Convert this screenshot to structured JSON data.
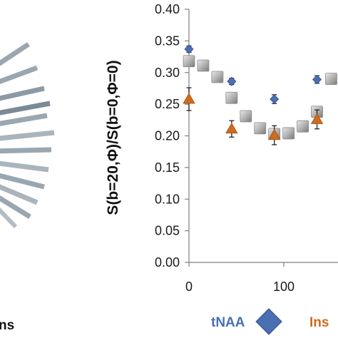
{
  "chart_data": {
    "type": "scatter",
    "ylabel": "S(b=20,Φ)/S(b=0,Φ=0)",
    "xlabel": "",
    "ylim": [
      0.0,
      0.4
    ],
    "yticks": [
      "0.00",
      "0.05",
      "0.10",
      "0.15",
      "0.20",
      "0.25",
      "0.30",
      "0.35",
      "0.40"
    ],
    "xticks": [
      "0",
      "100"
    ],
    "x_tick_values": [
      0,
      100
    ],
    "grid": false,
    "series": [
      {
        "name": "tNAA",
        "marker": "diamond",
        "color": "#4a6fb3",
        "x": [
          0,
          45,
          90,
          135
        ],
        "y": [
          0.337,
          0.286,
          0.258,
          0.289
        ],
        "err": [
          0.005,
          0.005,
          0.007,
          0.006
        ]
      },
      {
        "name": "Ins",
        "marker": "triangle",
        "color": "#d06a1e",
        "x": [
          0,
          45,
          90,
          135
        ],
        "y": [
          0.258,
          0.211,
          0.201,
          0.226
        ],
        "err": [
          0.018,
          0.013,
          0.015,
          0.015
        ]
      },
      {
        "name": "",
        "marker": "square",
        "color": "#a6a6a6",
        "x": [
          0,
          15,
          30,
          45,
          60,
          75,
          90,
          105,
          120,
          135,
          150
        ],
        "y": [
          0.318,
          0.311,
          0.293,
          0.26,
          0.231,
          0.212,
          0.203,
          0.204,
          0.215,
          0.238,
          0.29
        ]
      }
    ]
  },
  "left_panel": {
    "partial_label": "ns"
  },
  "colors": {
    "tnaa": "#4a6fb3",
    "ins": "#d06a1e",
    "model": "#a6a6a6",
    "axis": "#7f7f7f"
  }
}
